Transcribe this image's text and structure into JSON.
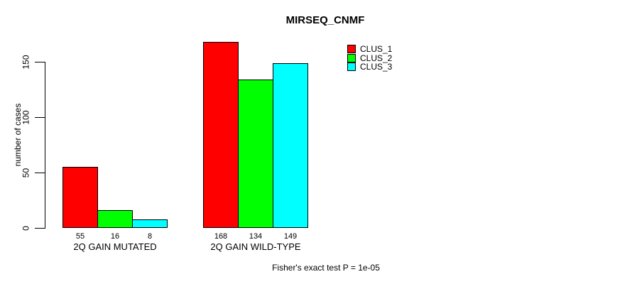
{
  "chart_data": {
    "type": "bar",
    "title": "MIRSEQ_CNMF",
    "ylabel": "number of cases",
    "xlabel": "",
    "categories": [
      "2Q GAIN MUTATED",
      "2Q GAIN WILD-TYPE"
    ],
    "series": [
      {
        "name": "CLUS_1",
        "color": "#ff0000",
        "values": [
          55,
          168
        ]
      },
      {
        "name": "CLUS_2",
        "color": "#00ff00",
        "values": [
          16,
          134
        ]
      },
      {
        "name": "CLUS_3",
        "color": "#00ffff",
        "values": [
          8,
          149
        ]
      }
    ],
    "yticks": [
      0,
      50,
      100,
      150
    ],
    "ylim": [
      0,
      150
    ],
    "bar_value_labels_shown": true,
    "legend_position": "top-right",
    "legend_box": false,
    "grid": false,
    "annotation": "Fisher's exact test P = 1e-05"
  }
}
